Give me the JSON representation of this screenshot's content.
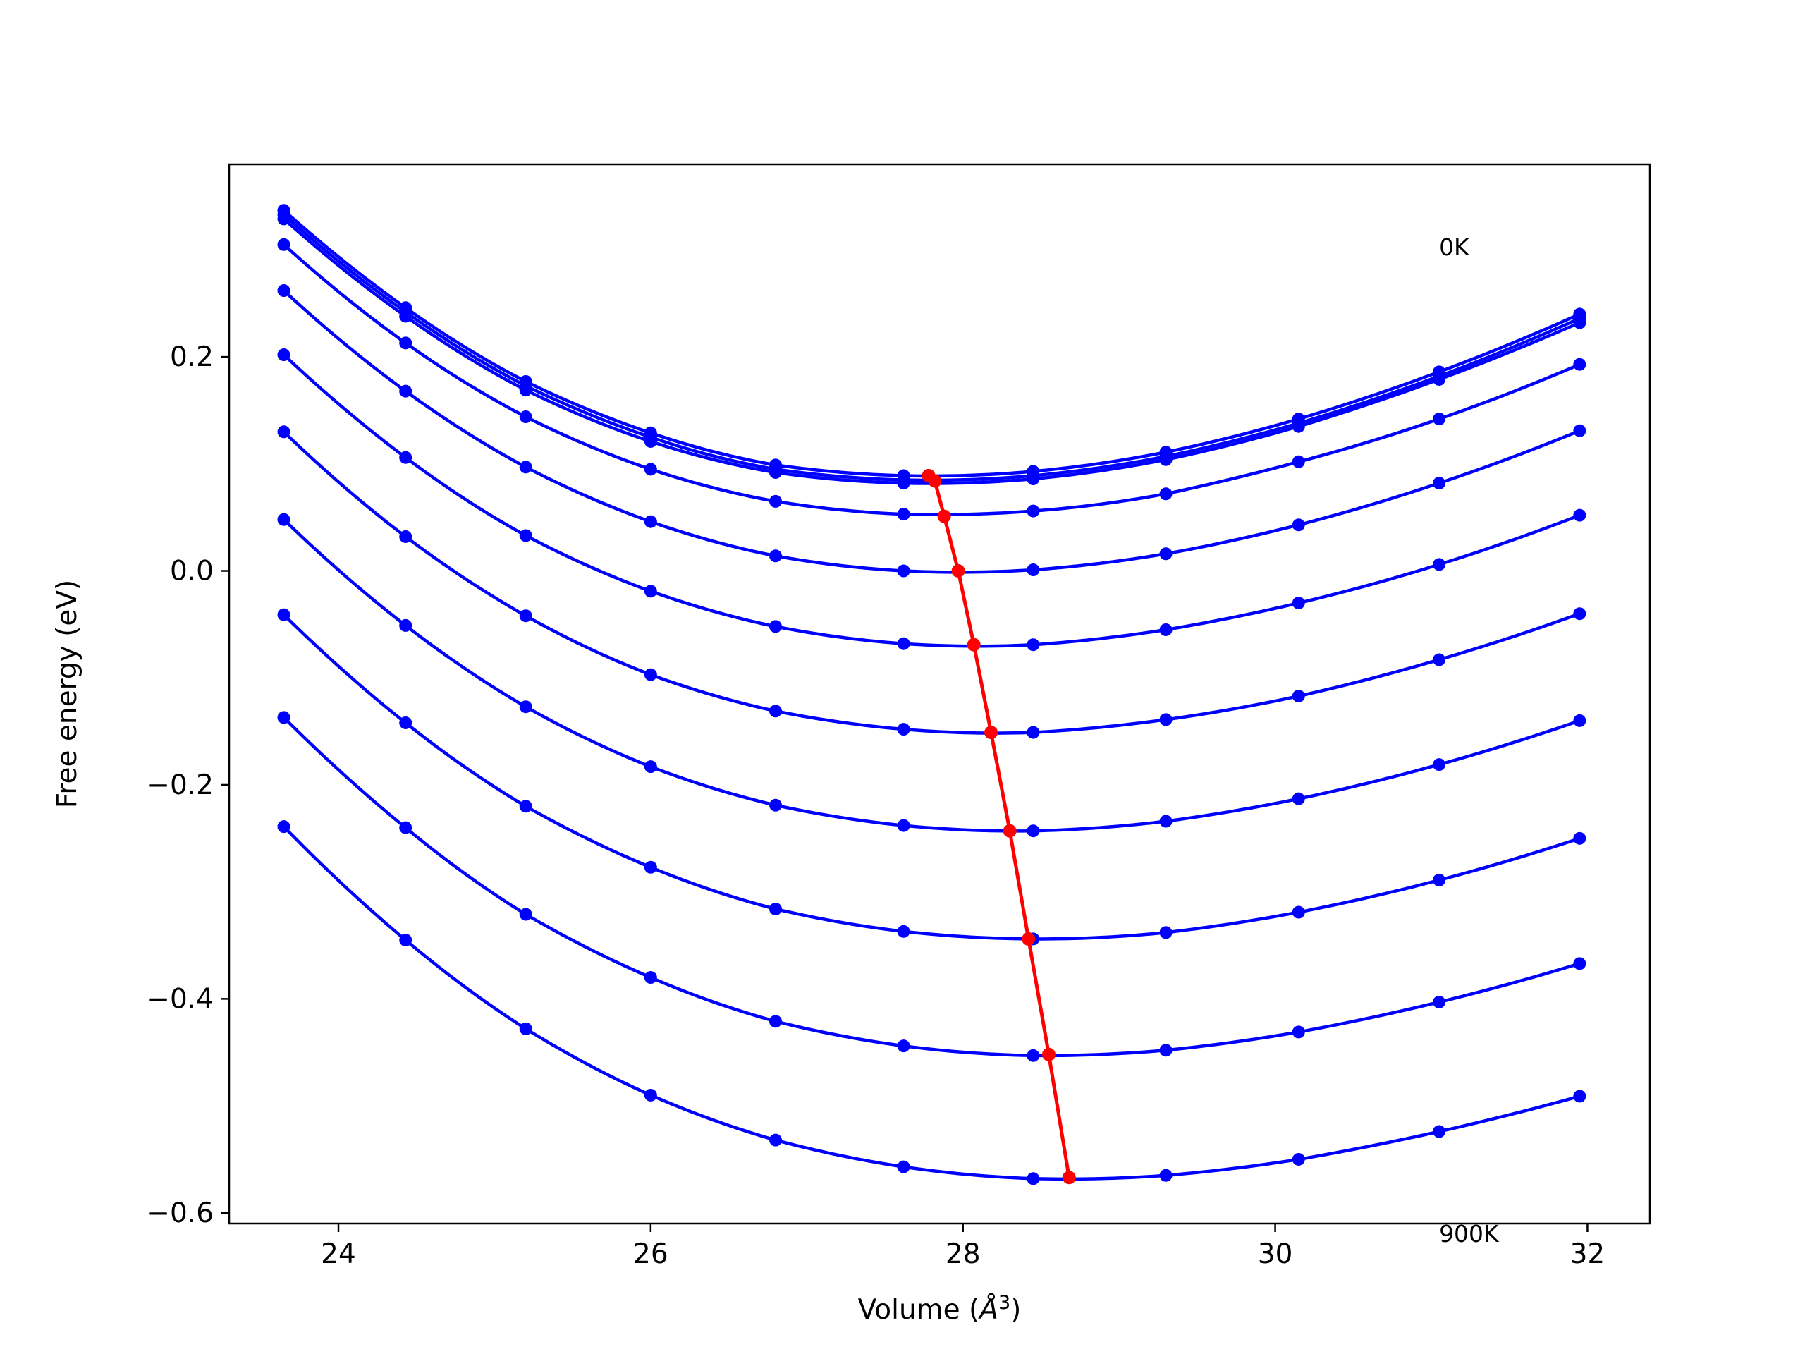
{
  "chart_data": {
    "type": "line",
    "title": "",
    "xlabel": "Volume (",
    "xlabel_symbol": "Å",
    "xlabel_exp": "3",
    "xlabel_close": ")",
    "ylabel": "Free energy (eV)",
    "xlim": [
      23.3,
      32.4
    ],
    "ylim": [
      -0.61,
      0.38
    ],
    "xticks": [
      24,
      26,
      28,
      30,
      32
    ],
    "yticks": [
      -0.6,
      -0.4,
      -0.2,
      0.0,
      0.2
    ],
    "xtick_labels": [
      "24",
      "26",
      "28",
      "30",
      "32"
    ],
    "ytick_labels": [
      "−0.6",
      "−0.4",
      "−0.2",
      "0.0",
      "0.2"
    ],
    "annotations": [
      {
        "text": "0K",
        "x": 31.05,
        "y": 0.295
      },
      {
        "text": "900K",
        "x": 31.05,
        "y": -0.627
      }
    ],
    "grid": false,
    "curve_color": "#0000ff",
    "min_color": "#ff0000",
    "volumes": [
      23.65,
      24.43,
      25.2,
      26.0,
      26.8,
      27.62,
      28.45,
      29.3,
      30.15,
      31.05,
      31.95
    ],
    "series": [
      {
        "values": [
          0.337,
          0.246,
          0.177,
          0.129,
          0.099,
          0.089,
          0.093,
          0.111,
          0.142,
          0.186,
          0.24
        ]
      },
      {
        "values": [
          0.333,
          0.242,
          0.173,
          0.125,
          0.095,
          0.085,
          0.089,
          0.107,
          0.138,
          0.182,
          0.236
        ]
      },
      {
        "values": [
          0.329,
          0.238,
          0.169,
          0.121,
          0.092,
          0.082,
          0.086,
          0.104,
          0.135,
          0.179,
          0.232
        ]
      },
      {
        "values": [
          0.305,
          0.213,
          0.144,
          0.095,
          0.065,
          0.053,
          0.056,
          0.072,
          0.102,
          0.142,
          0.193
        ]
      },
      {
        "values": [
          0.262,
          0.168,
          0.097,
          0.046,
          0.014,
          0.0,
          0.001,
          0.016,
          0.043,
          0.082,
          0.131
        ]
      },
      {
        "values": [
          0.202,
          0.106,
          0.033,
          -0.019,
          -0.052,
          -0.068,
          -0.069,
          -0.055,
          -0.03,
          0.006,
          0.052
        ]
      },
      {
        "values": [
          0.13,
          0.032,
          -0.042,
          -0.097,
          -0.131,
          -0.148,
          -0.151,
          -0.139,
          -0.117,
          -0.083,
          -0.04
        ]
      },
      {
        "values": [
          0.048,
          -0.051,
          -0.127,
          -0.183,
          -0.219,
          -0.238,
          -0.243,
          -0.234,
          -0.213,
          -0.181,
          -0.14
        ]
      },
      {
        "values": [
          -0.041,
          -0.142,
          -0.22,
          -0.277,
          -0.316,
          -0.337,
          -0.344,
          -0.338,
          -0.319,
          -0.289,
          -0.25
        ]
      },
      {
        "values": [
          -0.137,
          -0.24,
          -0.321,
          -0.38,
          -0.421,
          -0.444,
          -0.453,
          -0.448,
          -0.431,
          -0.403,
          -0.367
        ]
      },
      {
        "values": [
          -0.239,
          -0.345,
          -0.428,
          -0.49,
          -0.532,
          -0.557,
          -0.568,
          -0.565,
          -0.55,
          -0.524,
          -0.491
        ]
      }
    ],
    "equilibrium": {
      "x": [
        27.78,
        27.82,
        27.88,
        27.97,
        28.07,
        28.18,
        28.3,
        28.42,
        28.55,
        28.68
      ],
      "y": [
        0.089,
        0.084,
        0.051,
        0.0,
        -0.069,
        -0.151,
        -0.243,
        -0.344,
        -0.452,
        -0.567
      ]
    }
  }
}
